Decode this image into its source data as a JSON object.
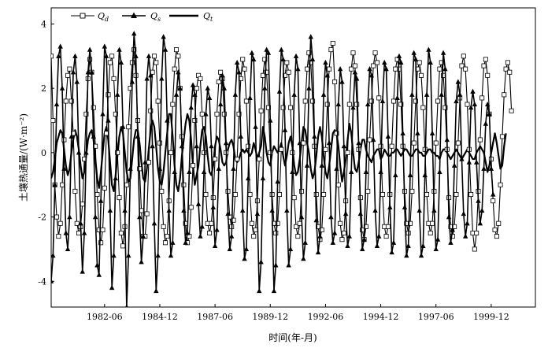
{
  "chart_data": {
    "type": "line",
    "xlabel": "时间(年-月)",
    "ylabel": "土壤热通量/(W·m⁻²)",
    "ylim": [
      -4.8,
      4.5
    ],
    "yticks": [
      -4,
      -2,
      0,
      2,
      4
    ],
    "x_range": [
      "1980-01",
      "2001-12"
    ],
    "xticks": [
      {
        "label": "1982-06",
        "date": "1982-06"
      },
      {
        "label": "1984-12",
        "date": "1984-12"
      },
      {
        "label": "1987-06",
        "date": "1987-06"
      },
      {
        "label": "1989-12",
        "date": "1989-12"
      },
      {
        "label": "1992-06",
        "date": "1992-06"
      },
      {
        "label": "1994-12",
        "date": "1994-12"
      },
      {
        "label": "1997-06",
        "date": "1997-06"
      },
      {
        "label": "1999-12",
        "date": "1999-12"
      }
    ],
    "legend_position": "top-left",
    "grid": false,
    "series": [
      {
        "name": "Q_d",
        "name_main": "Q",
        "name_sub": "d",
        "marker": "open-square",
        "color": "#000000",
        "start": "1980-01",
        "values": [
          3.0,
          1.0,
          -1.0,
          -2.0,
          -2.6,
          -2.2,
          -1.0,
          0.4,
          1.6,
          2.4,
          2.6,
          1.6,
          0.6,
          -1.2,
          -2.2,
          -2.5,
          -2.3,
          -1.6,
          -0.2,
          1.2,
          2.3,
          2.9,
          2.5,
          1.4,
          0.2,
          -1.3,
          -2.4,
          -2.8,
          -2.4,
          -1.1,
          0.6,
          1.8,
          2.8,
          3.0,
          2.3,
          1.2,
          0.0,
          -1.4,
          -2.5,
          -2.9,
          -2.3,
          -1.0,
          0.8,
          2.0,
          2.8,
          3.2,
          2.4,
          1.0,
          -0.5,
          -1.8,
          -2.6,
          -2.6,
          -1.9,
          -0.3,
          1.3,
          2.5,
          3.0,
          2.8,
          1.6,
          0.3,
          -1.2,
          -2.3,
          -2.8,
          -2.6,
          -1.5,
          0.0,
          1.5,
          2.6,
          3.2,
          3.0,
          2.0,
          0.5,
          -1.0,
          -2.2,
          -2.8,
          -2.6,
          -1.7,
          -0.4,
          1.0,
          2.0,
          2.4,
          2.3,
          1.2,
          0.0,
          -1.3,
          -2.2,
          -2.5,
          -2.2,
          -1.4,
          -0.2,
          1.2,
          2.2,
          2.5,
          2.3,
          1.2,
          0.0,
          -1.2,
          -2.0,
          -2.3,
          -2.1,
          -1.3,
          -0.2,
          1.2,
          2.3,
          2.9,
          2.6,
          1.6,
          0.2,
          -1.3,
          -2.2,
          -2.6,
          -2.4,
          -1.5,
          -0.2,
          1.3,
          2.4,
          2.9,
          2.5,
          1.4,
          0.0,
          -1.3,
          -2.2,
          -2.5,
          -2.2,
          -1.3,
          0.1,
          1.4,
          2.4,
          2.8,
          2.5,
          1.4,
          0.0,
          -1.4,
          -2.3,
          -2.6,
          -2.2,
          -1.2,
          0.3,
          1.6,
          2.6,
          3.1,
          2.8,
          1.6,
          0.2,
          -1.3,
          -2.3,
          -2.7,
          -2.4,
          -1.3,
          0.1,
          1.5,
          2.6,
          3.2,
          3.4,
          2.2,
          0.6,
          -1.0,
          -2.2,
          -2.7,
          -2.5,
          -1.5,
          0.0,
          1.5,
          2.6,
          3.1,
          2.7,
          1.5,
          0.1,
          -1.4,
          -2.4,
          -2.7,
          -2.3,
          -1.2,
          0.4,
          1.6,
          2.7,
          3.1,
          2.8,
          1.7,
          0.2,
          -1.3,
          -2.3,
          -2.6,
          -2.3,
          -1.3,
          0.2,
          1.6,
          2.6,
          2.9,
          2.6,
          1.5,
          0.2,
          -1.2,
          -2.2,
          -2.5,
          -2.2,
          -1.2,
          0.3,
          1.6,
          2.6,
          2.8,
          2.4,
          1.4,
          0.1,
          -1.3,
          -2.2,
          -2.5,
          -2.2,
          -1.2,
          0.3,
          1.6,
          2.6,
          2.8,
          2.4,
          1.4,
          0.1,
          -1.4,
          -2.3,
          -2.6,
          -2.3,
          -1.3,
          0.3,
          1.7,
          2.7,
          3.0,
          2.6,
          1.5,
          0.1,
          -1.3,
          -2.5,
          -3.0,
          -2.5,
          -1.2,
          0.4,
          1.7,
          2.7,
          2.9,
          2.4,
          1.2,
          -0.2,
          -1.5,
          -2.4,
          -2.6,
          -2.2,
          -1.0,
          0.5,
          1.8,
          2.6,
          2.8,
          2.5,
          1.3
        ]
      },
      {
        "name": "Q_s",
        "name_main": "Q",
        "name_sub": "s",
        "marker": "filled-triangle",
        "color": "#000000",
        "start": "1980-01",
        "values": [
          -4.0,
          -3.2,
          -1.0,
          1.5,
          3.0,
          3.3,
          2.0,
          -0.5,
          -2.5,
          -3.0,
          -2.0,
          0.5,
          2.5,
          3.0,
          2.2,
          0.0,
          -2.2,
          -3.7,
          -2.5,
          0.0,
          2.5,
          3.2,
          2.5,
          0.5,
          -2.0,
          -3.5,
          -3.8,
          -1.5,
          1.2,
          3.3,
          3.0,
          1.0,
          -1.8,
          -4.2,
          -3.2,
          -0.8,
          1.8,
          3.2,
          2.8,
          0.8,
          -1.8,
          -4.8,
          -3.2,
          -0.5,
          2.2,
          3.7,
          3.0,
          0.5,
          -2.0,
          -3.4,
          -2.6,
          -0.3,
          2.3,
          3.0,
          2.4,
          0.2,
          -2.2,
          -4.3,
          -3.2,
          -0.5,
          2.3,
          3.6,
          3.2,
          1.0,
          -1.8,
          -3.2,
          -2.8,
          -0.6,
          1.8,
          2.5,
          2.0,
          0.2,
          -1.8,
          -2.8,
          -2.5,
          -0.6,
          1.4,
          2.1,
          1.8,
          0.2,
          -1.6,
          -2.6,
          -2.3,
          -0.6,
          1.2,
          2.0,
          1.7,
          0.2,
          -1.7,
          -2.9,
          -2.4,
          -0.5,
          1.5,
          2.4,
          2.0,
          0.3,
          -1.9,
          -3.0,
          -2.6,
          -0.5,
          1.8,
          2.8,
          2.5,
          0.5,
          -1.8,
          -3.3,
          -3.0,
          -0.8,
          1.7,
          3.1,
          2.9,
          0.8,
          -1.9,
          -4.3,
          -3.4,
          -0.8,
          2.0,
          3.2,
          3.1,
          1.0,
          -1.8,
          -4.3,
          -3.5,
          -0.9,
          1.9,
          3.2,
          2.9,
          0.7,
          -1.8,
          -3.5,
          -3.0,
          -0.6,
          1.8,
          3.0,
          2.6,
          0.3,
          -2.0,
          -3.3,
          -2.8,
          -0.4,
          2.0,
          3.6,
          2.9,
          0.5,
          -2.1,
          -3.1,
          -2.6,
          -0.4,
          1.8,
          2.8,
          2.4,
          0.3,
          -2.0,
          -2.8,
          -2.5,
          -0.5,
          1.5,
          2.6,
          2.2,
          0.2,
          -1.9,
          -2.9,
          -2.6,
          -0.6,
          1.4,
          2.5,
          2.3,
          0.3,
          -1.9,
          -3.0,
          -2.7,
          -0.6,
          1.5,
          2.6,
          2.4,
          0.4,
          -1.8,
          -2.9,
          -2.6,
          -0.6,
          1.6,
          2.8,
          2.6,
          0.5,
          -1.7,
          -3.1,
          -2.8,
          -0.7,
          1.7,
          3.0,
          2.8,
          0.6,
          -1.7,
          -3.2,
          -2.9,
          -0.7,
          1.8,
          3.1,
          2.9,
          0.6,
          -1.8,
          -3.2,
          -2.9,
          -0.7,
          1.8,
          3.2,
          2.8,
          0.6,
          -1.8,
          -3.0,
          -2.7,
          -0.6,
          1.8,
          3.1,
          2.6,
          0.4,
          -2.0,
          -2.8,
          -2.4,
          -0.4,
          1.6,
          2.2,
          1.8,
          -0.2,
          -1.9,
          -2.6,
          -2.2,
          -0.3,
          1.4,
          1.9,
          1.5,
          -0.3,
          -1.5,
          -2.2,
          -1.8,
          -0.5,
          0.9,
          1.5,
          1.2,
          -0.5,
          -1.3
        ]
      },
      {
        "name": "Q_t",
        "name_main": "Q",
        "name_sub": "t",
        "marker": "none",
        "color": "#000000",
        "start": "1980-01",
        "values": [
          -0.8,
          -0.6,
          -0.2,
          0.3,
          0.5,
          0.7,
          0.6,
          0.1,
          -0.4,
          -0.7,
          -0.5,
          0.0,
          0.4,
          0.7,
          0.5,
          0.1,
          -0.4,
          -0.8,
          -0.6,
          -0.1,
          0.4,
          0.6,
          0.7,
          0.4,
          -0.2,
          -0.8,
          -1.1,
          -0.6,
          0.0,
          0.6,
          0.8,
          0.4,
          -0.3,
          -1.0,
          -1.2,
          -0.7,
          -0.1,
          0.5,
          0.8,
          0.6,
          0.0,
          -0.6,
          -0.9,
          -0.8,
          -0.2,
          0.4,
          0.7,
          0.7,
          0.3,
          -0.3,
          -0.8,
          -0.9,
          -0.5,
          0.1,
          0.7,
          1.0,
          0.8,
          0.2,
          -0.5,
          -0.9,
          -1.0,
          -0.6,
          0.0,
          0.6,
          1.2,
          1.2,
          0.5,
          -0.4,
          -1.0,
          -1.2,
          -0.8,
          -0.1,
          0.4,
          0.9,
          1.2,
          1.0,
          0.4,
          -0.4,
          -1.0,
          -0.7,
          -0.4,
          0.2,
          0.7,
          0.8,
          0.5,
          -0.1,
          -0.6,
          -0.7,
          -0.4,
          0.2,
          0.5,
          0.4,
          0.1,
          -0.3,
          -0.4,
          -0.3,
          0.1,
          0.3,
          0.4,
          0.2,
          -0.2,
          -0.3,
          -0.2,
          0.0,
          0.1,
          0.0,
          0.1,
          0.0,
          -0.1,
          0.0,
          0.3,
          0.1,
          -0.2,
          0.0,
          0.2,
          0.8,
          0.5,
          0.0,
          -0.3,
          -0.4,
          0.0,
          0.2,
          0.1,
          0.0,
          0.1,
          0.3,
          -0.1,
          -0.4,
          -0.1,
          0.3,
          0.5,
          0.2,
          -0.4,
          -0.7,
          -0.6,
          -0.2,
          0.3,
          0.8,
          0.7,
          0.3,
          0.0,
          -0.5,
          -0.8,
          -0.6,
          -0.1,
          0.5,
          0.8,
          0.5,
          -0.1,
          -0.6,
          -0.8,
          -0.4,
          0.1,
          0.6,
          0.7,
          0.6,
          0.2,
          -0.4,
          -0.9,
          -0.6,
          -0.2,
          0.4,
          0.9,
          0.6,
          0.0,
          -0.5,
          -0.6,
          -0.3,
          0.1,
          0.4,
          0.4,
          0.1,
          -0.1,
          -0.2,
          -0.3,
          -0.1,
          0.0,
          0.1,
          0.1,
          -0.2,
          -0.1,
          0.1,
          0.0,
          -0.1,
          -0.1,
          0.0,
          0.0,
          0.1,
          0.1,
          0.0,
          -0.1,
          0.0,
          0.1,
          0.1,
          0.0,
          -0.1,
          -0.1,
          0.0,
          0.1,
          0.1,
          0.0,
          0.0,
          -0.1,
          -0.1,
          0.0,
          0.1,
          0.1,
          0.0,
          0.0,
          -0.1,
          -0.1,
          -0.2,
          0.0,
          0.1,
          0.1,
          0.0,
          -0.1,
          -0.2,
          -0.1,
          0.0,
          0.1,
          0.0,
          -0.1,
          -0.2,
          -0.1,
          0.0,
          0.1,
          0.0,
          -0.1,
          -0.2,
          -0.2,
          0.0,
          0.1,
          0.2,
          0.1,
          0.0,
          -0.3,
          -0.6,
          -0.4,
          0.0,
          0.3,
          0.6,
          0.3,
          -0.1,
          -0.5,
          -0.4,
          0.2,
          0.6
        ]
      }
    ]
  }
}
